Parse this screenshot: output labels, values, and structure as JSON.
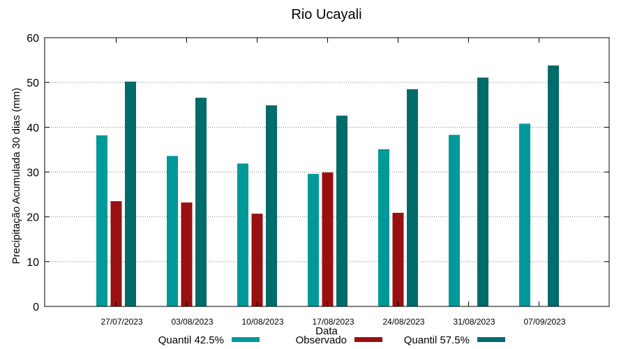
{
  "chart_data": {
    "type": "bar",
    "title": "Rio Ucayali",
    "xlabel": "Data",
    "ylabel": "Precipitação Acumulada 30 dias (mm)",
    "ylim": [
      0,
      60
    ],
    "yticks": [
      0,
      10,
      20,
      30,
      40,
      50,
      60
    ],
    "grid": true,
    "legend_position": "bottom",
    "categories": [
      "27/07/2023",
      "03/08/2023",
      "10/08/2023",
      "17/08/2023",
      "24/08/2023",
      "31/08/2023",
      "07/09/2023"
    ],
    "series": [
      {
        "name": "Quantil 42.5%",
        "color": "#009999",
        "values": [
          38.2,
          33.6,
          31.9,
          29.6,
          35.1,
          38.3,
          40.8
        ]
      },
      {
        "name": "Observado",
        "color": "#991010",
        "values": [
          23.5,
          23.2,
          20.7,
          29.9,
          20.9,
          null,
          null
        ]
      },
      {
        "name": "Quantil 57.5%",
        "color": "#006b6b",
        "values": [
          50.2,
          46.6,
          44.9,
          42.6,
          48.5,
          51.1,
          53.8
        ]
      }
    ]
  }
}
